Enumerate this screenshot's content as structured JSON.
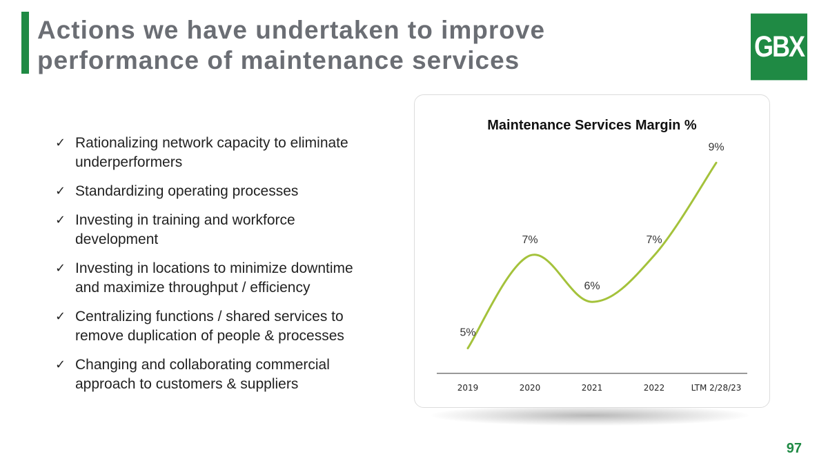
{
  "slide": {
    "title": "Actions we have undertaken to improve performance of maintenance services",
    "logo_text": "GBX",
    "page_number": "97",
    "accent_color": "#1f8a44"
  },
  "bullets": {
    "check_glyph": "✓",
    "items": [
      "Rationalizing network capacity to eliminate underperformers",
      "Standardizing operating processes",
      "Investing in training and workforce development",
      "Investing in locations to minimize downtime and maximize throughput / efficiency",
      "Centralizing functions / shared services to remove duplication of people & processes",
      "Changing and collaborating commercial approach to customers & suppliers"
    ]
  },
  "chart_data": {
    "type": "line",
    "title": "Maintenance Services Margin %",
    "categories": [
      "2019",
      "2020",
      "2021",
      "2022",
      "LTM 2/28/23"
    ],
    "series": [
      {
        "name": "Maintenance Services Margin %",
        "values": [
          5,
          7,
          6,
          7,
          9
        ],
        "labels": [
          "5%",
          "7%",
          "6%",
          "7%",
          "9%"
        ],
        "color": "#a4c23b"
      }
    ],
    "xlabel": "",
    "ylabel": "",
    "ylim": [
      0,
      10
    ],
    "grid": false,
    "legend": "none"
  }
}
